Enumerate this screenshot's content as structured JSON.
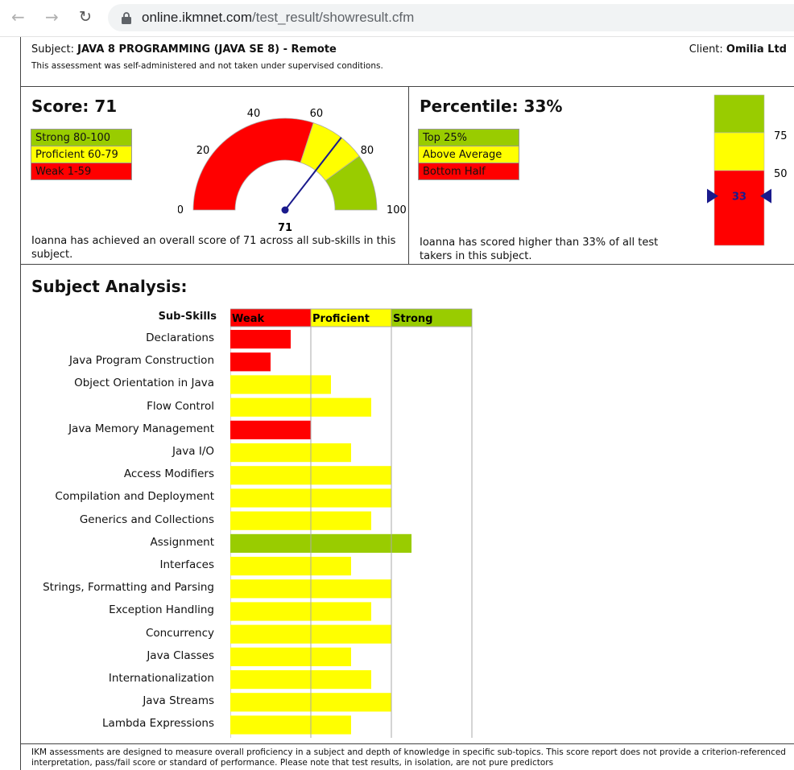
{
  "browser": {
    "url_host": "online.ikmnet.com",
    "url_path": "/test_result/showresult.cfm"
  },
  "header": {
    "subject_label": "Subject:",
    "subject_value": "JAVA 8 PROGRAMMING (JAVA SE 8) - Remote",
    "note": "This assessment was self-administered and not taken under supervised conditions.",
    "client_label": "Client:",
    "client_value": "Omilia Ltd"
  },
  "score": {
    "title": "Score: 71",
    "value": 71,
    "legend": [
      "Strong 80-100",
      "Proficient 60-79",
      "Weak 1-59"
    ],
    "gauge_ticks": [
      "0",
      "20",
      "40",
      "60",
      "80",
      "100"
    ],
    "gauge_value_label": "71",
    "description": "Ioanna has achieved an overall score of 71 across all sub-skills in this subject."
  },
  "percentile": {
    "title": "Percentile: 33%",
    "value": 33,
    "legend": [
      "Top 25%",
      "Above Average",
      "Bottom Half"
    ],
    "scale_labels": [
      "75",
      "50"
    ],
    "marker_label": "33",
    "description": "Ioanna has scored higher than 33% of all test takers in this subject."
  },
  "analysis": {
    "title": "Subject Analysis:",
    "subskills_header": "Sub-Skills",
    "band_labels": [
      "Weak",
      "Proficient",
      "Strong"
    ]
  },
  "chart_data": {
    "type": "bar",
    "orientation": "horizontal",
    "categories": [
      "Declarations",
      "Java Program Construction",
      "Object Orientation in Java",
      "Flow Control",
      "Java Memory Management",
      "Java I/O",
      "Access Modifiers",
      "Compilation and Deployment",
      "Generics and Collections",
      "Assignment",
      "Interfaces",
      "Strings, Formatting and Parsing",
      "Exception Handling",
      "Concurrency",
      "Java Classes",
      "Internationalization",
      "Java Streams",
      "Lambda Expressions"
    ],
    "values": [
      0.75,
      0.5,
      1.25,
      1.75,
      1.0,
      1.5,
      2.0,
      2.0,
      1.75,
      2.25,
      1.5,
      2.0,
      1.75,
      2.0,
      1.5,
      1.75,
      2.0,
      1.5
    ],
    "bands": [
      "weak",
      "weak",
      "proficient",
      "proficient",
      "weak",
      "proficient",
      "proficient",
      "proficient",
      "proficient",
      "strong",
      "proficient",
      "proficient",
      "proficient",
      "proficient",
      "proficient",
      "proficient",
      "proficient",
      "proficient"
    ],
    "xlim": [
      0,
      3
    ],
    "colors": {
      "weak": "#ff0000",
      "proficient": "#ffff00",
      "strong": "#99cc00"
    }
  },
  "footer": {
    "text": "IKM assessments are designed to measure overall proficiency in a subject and depth of knowledge in specific sub-topics. This score report does not provide a criterion-referenced interpretation, pass/fail score or standard of performance. Please note that test results, in isolation, are not pure predictors"
  }
}
